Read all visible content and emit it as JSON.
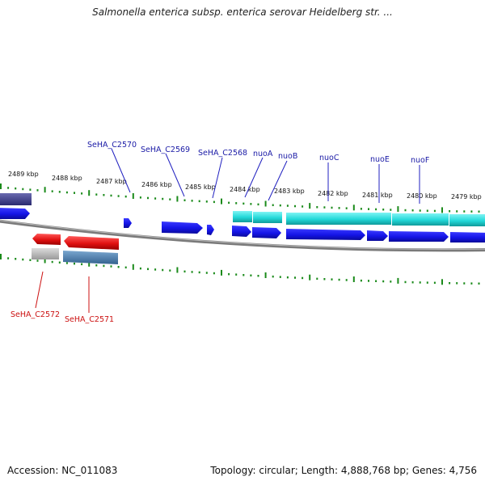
{
  "title": "Salmonella enterica subsp. enterica serovar Heidelberg str. ...",
  "footer": {
    "accession": "Accession: NC_011083",
    "summary": "Topology: circular; Length: 4,888,768 bp; Genes: 4,756"
  },
  "ruler_labels": [
    "2489 kbp",
    "2488 kbp",
    "2487 kbp",
    "2486 kbp",
    "2485 kbp",
    "2484 kbp",
    "2483 kbp",
    "2482 kbp",
    "2481 kbp",
    "2480 kbp",
    "2479 kbp"
  ],
  "genes_top": [
    "SeHA_C2570",
    "SeHA_C2569",
    "SeHA_C2568",
    "nuoA",
    "nuoB",
    "nuoC",
    "nuoE",
    "nuoF"
  ],
  "genes_bottom": [
    "SeHA_C2572",
    "SeHA_C2571"
  ],
  "colors": {
    "forward_gene": "#1414e6",
    "forward_product": "#22d8d8",
    "reverse_gene": "#e01010",
    "reverse_product_grey": "#b8b8b8",
    "reverse_product_blue": "#4a7fb0",
    "backbone": "#808080",
    "tick": "#1a8a1a",
    "top_label": "#1a1aa6",
    "bottom_label": "#cc1111"
  }
}
